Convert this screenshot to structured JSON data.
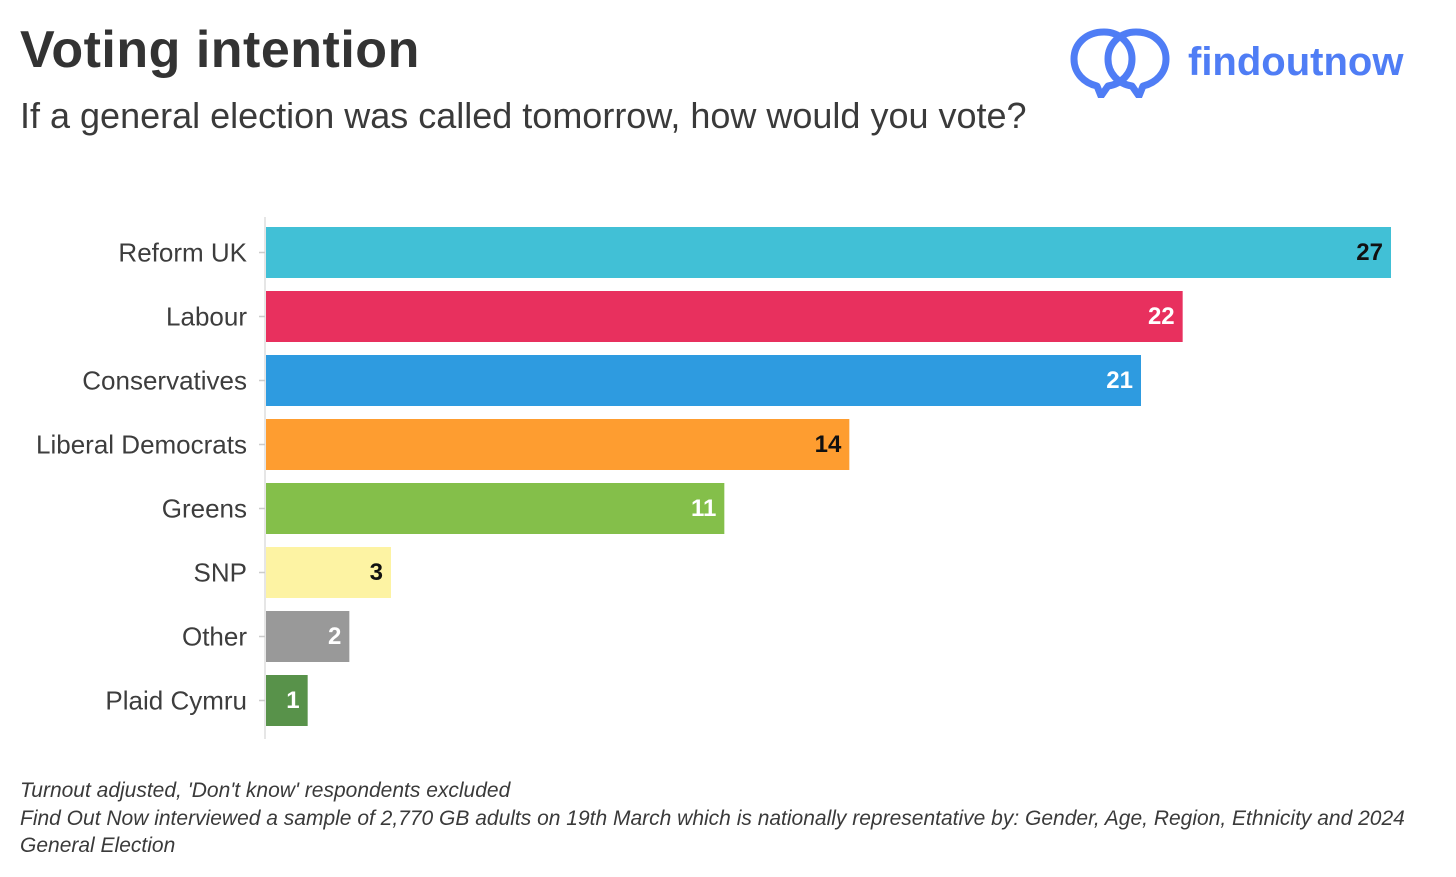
{
  "title": "Voting intention",
  "subtitle": "If a general election was called tomorrow, how would you vote?",
  "logo": {
    "text": "findoutnow",
    "icon": "two-speech-bubbles-icon",
    "color": "#4f7df5"
  },
  "footnotes": [
    "Turnout adjusted, 'Don't know' respondents excluded",
    "Find Out Now interviewed a sample of 2,770 GB adults on 19th March which is nationally representative by: Gender, Age, Region, Ethnicity and 2024 General Election"
  ],
  "chart_data": {
    "type": "bar",
    "orientation": "horizontal",
    "title": "Voting intention",
    "subtitle": "If a general election was called tomorrow, how would you vote?",
    "xlabel": "",
    "ylabel": "",
    "xlim": [
      0,
      27
    ],
    "grid": false,
    "legend": "none",
    "categories": [
      "Reform UK",
      "Labour",
      "Conservatives",
      "Liberal Democrats",
      "Greens",
      "SNP",
      "Other",
      "Plaid Cymru"
    ],
    "values": [
      27,
      22,
      21,
      14,
      11,
      3,
      2,
      1
    ],
    "colors": [
      "#41c0d6",
      "#e8305e",
      "#2e9be0",
      "#fe9d30",
      "#84bf4a",
      "#fdf3a3",
      "#999999",
      "#58924a"
    ],
    "label_colors": [
      "#111111",
      "#ffffff",
      "#ffffff",
      "#111111",
      "#ffffff",
      "#111111",
      "#ffffff",
      "#ffffff"
    ]
  }
}
